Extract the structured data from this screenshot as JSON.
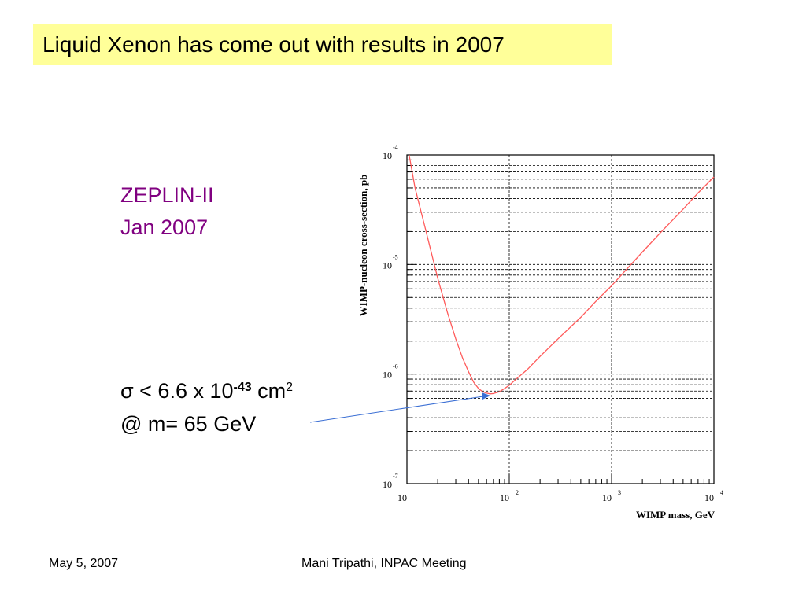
{
  "slide": {
    "title": "Liquid Xenon has come out with results in 2007",
    "detector_name": "ZEPLIN-II",
    "detector_date": "Jan 2007",
    "result_line1_prefix": "σ < 6.6 x 10",
    "result_line1_exponent": "-43",
    "result_line1_unit": " cm",
    "result_line1_unit_exponent": "2",
    "result_line2": "@ m= 65 GeV",
    "footer_date": "May 5, 2007",
    "footer_center": "Mani Tripathi, INPAC Meeting"
  },
  "colors": {
    "title_background": "#ffff99",
    "detector_text": "#800080",
    "curve": "#ff5a5a",
    "arrow": "#3b6fd4"
  },
  "chart_data": {
    "type": "line",
    "xlabel": "WIMP mass, GeV",
    "ylabel": "WIMP-nucleon cross-section, pb",
    "x_scale": "log",
    "y_scale": "log",
    "xlim": [
      10,
      10000
    ],
    "ylim": [
      1e-07,
      0.0001
    ],
    "x_ticks": [
      {
        "value": 10,
        "base": "10",
        "exp": ""
      },
      {
        "value": 100,
        "base": "10",
        "exp": "2"
      },
      {
        "value": 1000,
        "base": "10",
        "exp": "3"
      },
      {
        "value": 10000,
        "base": "10",
        "exp": "4"
      }
    ],
    "y_ticks": [
      {
        "value": 0.0001,
        "base": "10",
        "exp": "-4"
      },
      {
        "value": 1e-05,
        "base": "10",
        "exp": "-5"
      },
      {
        "value": 1e-06,
        "base": "10",
        "exp": "-6"
      },
      {
        "value": 1e-07,
        "base": "10",
        "exp": "-7"
      }
    ],
    "grid": true,
    "series": [
      {
        "x": [
          10.5,
          12,
          15,
          20,
          25,
          30,
          35,
          40,
          45,
          50,
          55,
          60,
          65,
          70,
          80,
          90,
          100,
          120,
          150,
          200,
          300,
          500,
          700,
          1000,
          2000,
          3000,
          5000,
          7000,
          10000
        ],
        "y": [
          0.0001,
          5e-05,
          2.2e-05,
          7.5e-06,
          3.6e-06,
          2.1e-06,
          1.4e-06,
          1.05e-06,
          8.4e-07,
          7.4e-07,
          6.9e-07,
          6.7e-07,
          6.6e-07,
          6.65e-07,
          6.9e-07,
          7.4e-07,
          7.9e-07,
          9.2e-07,
          1.1e-06,
          1.45e-06,
          2.1e-06,
          3.3e-06,
          4.6e-06,
          6.4e-06,
          1.3e-05,
          1.95e-05,
          3.2e-05,
          4.5e-05,
          6.3e-05
        ]
      }
    ]
  }
}
